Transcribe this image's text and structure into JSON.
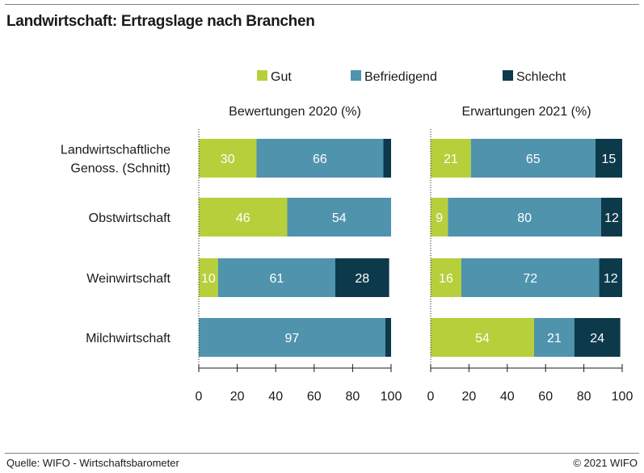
{
  "title": "Landwirtschaft: Ertragslage nach Branchen",
  "footer": {
    "source": "Quelle: WIFO - Wirtschaftsbarometer",
    "copyright": "© 2021 WIFO"
  },
  "colors": {
    "Gut": "#b7cf3b",
    "Befriedigend": "#4f93ad",
    "Schlecht": "#0c3a4b"
  },
  "chart_data": [
    {
      "type": "bar",
      "orientation": "horizontal",
      "stacked": true,
      "title": "Bewertungen 2020 (%)",
      "categories": [
        "Landwirtschaftliche Genoss. (Schnitt)",
        "Obstwirtschaft",
        "Weinwirtschaft",
        "Milchwirtschaft"
      ],
      "series": [
        {
          "name": "Gut",
          "values": [
            30,
            46,
            10,
            0
          ]
        },
        {
          "name": "Befriedigend",
          "values": [
            66,
            54,
            61,
            97
          ]
        },
        {
          "name": "Schlecht",
          "values": [
            4,
            0,
            28,
            3
          ]
        }
      ],
      "xlim": [
        0,
        100
      ],
      "xticks": [
        0,
        20,
        40,
        60,
        80,
        100
      ],
      "legend_position": "top",
      "grid": false
    },
    {
      "type": "bar",
      "orientation": "horizontal",
      "stacked": true,
      "title": "Erwartungen 2021 (%)",
      "categories": [
        "Landwirtschaftliche Genoss. (Schnitt)",
        "Obstwirtschaft",
        "Weinwirtschaft",
        "Milchwirtschaft"
      ],
      "series": [
        {
          "name": "Gut",
          "values": [
            21,
            9,
            16,
            54
          ]
        },
        {
          "name": "Befriedigend",
          "values": [
            65,
            80,
            72,
            21
          ]
        },
        {
          "name": "Schlecht",
          "values": [
            15,
            12,
            12,
            24
          ]
        }
      ],
      "xlim": [
        0,
        100
      ],
      "xticks": [
        0,
        20,
        40,
        60,
        80,
        100
      ],
      "legend_position": "top",
      "grid": false
    }
  ],
  "category_labels": [
    [
      "Landwirtschaftliche",
      "Genoss. (Schnitt)"
    ],
    [
      "Obstwirtschaft"
    ],
    [
      "Weinwirtschaft"
    ],
    [
      "Milchwirtschaft"
    ]
  ],
  "value_labels": [
    [
      [
        "30",
        "66",
        ""
      ],
      [
        "46",
        "54",
        ""
      ],
      [
        "10",
        "61",
        "28"
      ],
      [
        "",
        "97",
        ""
      ]
    ],
    [
      [
        "21",
        "65",
        "15"
      ],
      [
        "9",
        "80",
        "12"
      ],
      [
        "16",
        "72",
        "12"
      ],
      [
        "54",
        "21",
        "24"
      ]
    ]
  ]
}
